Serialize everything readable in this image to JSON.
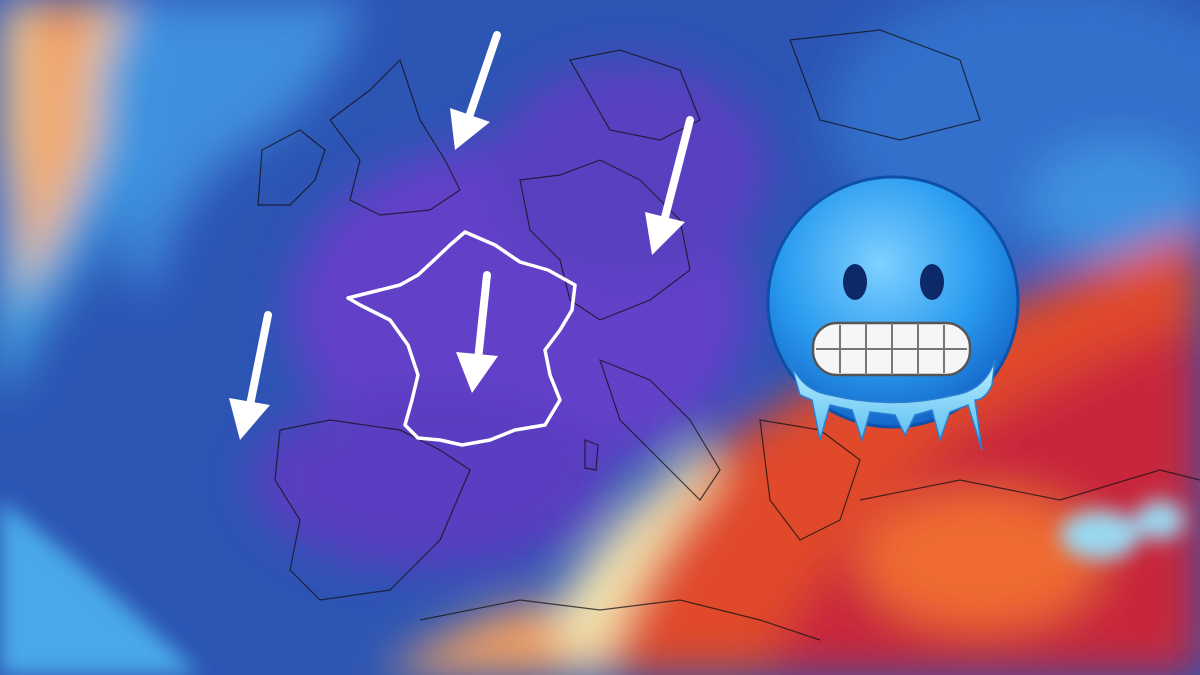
{
  "map": {
    "type": "temperature-anomaly-forecast",
    "region": "Europe",
    "highlighted_country": "France",
    "colors": {
      "cold_deep": "#6a3fd0",
      "cold": "#2f56b8",
      "cool": "#3c8fe0",
      "mild": "#f2e9b0",
      "warm": "#e8542a",
      "hot": "#c8283a"
    },
    "arrows": [
      {
        "direction": "south-southwest"
      },
      {
        "direction": "south-southwest"
      },
      {
        "direction": "south"
      },
      {
        "direction": "south-southwest"
      }
    ],
    "overlay_icon": "cold-face-emoji-icon"
  }
}
